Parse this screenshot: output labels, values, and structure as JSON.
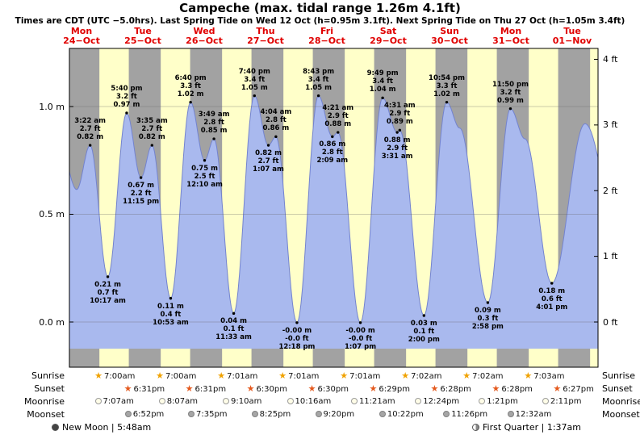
{
  "header": {
    "title": "Campeche (max. tidal range 1.26m 4.1ft)",
    "subtitle": "Times are CDT (UTC −5.0hrs). Last Spring Tide on Wed 12 Oct (h=0.95m 3.1ft). Next Spring Tide on Thu 27 Oct (h=1.05m 3.4ft)"
  },
  "chart_data": {
    "type": "area",
    "title": "Campeche tide curve",
    "colors": {
      "day_band": "#ffffc9",
      "night_band": "#a2a2a2",
      "tide_fill": "#a9b9ee",
      "tide_stroke": "#7383cf",
      "day_label": "#e00000",
      "grid": "#666666"
    },
    "ylim_m": [
      -0.21,
      1.27
    ],
    "y_ticks_left": [
      {
        "label": "1.0 m",
        "value": 1.0
      },
      {
        "label": "0.5 m",
        "value": 0.5
      },
      {
        "label": "0.0 m",
        "value": 0.0
      }
    ],
    "y_ticks_right": [
      {
        "label": "4 ft",
        "value": 4
      },
      {
        "label": "3 ft",
        "value": 3
      },
      {
        "label": "2 ft",
        "value": 2
      },
      {
        "label": "1 ft",
        "value": 1
      },
      {
        "label": "0 ft",
        "value": 0
      }
    ],
    "days": [
      {
        "dow": "Mon",
        "date": "24−Oct"
      },
      {
        "dow": "Tue",
        "date": "25−Oct"
      },
      {
        "dow": "Wed",
        "date": "26−Oct"
      },
      {
        "dow": "Thu",
        "date": "27−Oct"
      },
      {
        "dow": "Fri",
        "date": "28−Oct"
      },
      {
        "dow": "Sat",
        "date": "29−Oct"
      },
      {
        "dow": "Sun",
        "date": "30−Oct"
      },
      {
        "dow": "Mon",
        "date": "31−Oct"
      },
      {
        "dow": "Tue",
        "date": "01−Nov"
      }
    ],
    "tide_events": [
      {
        "t": 3.37,
        "h": 0.82,
        "type": "high",
        "time": "3:22 am",
        "ft": "2.7 ft",
        "m": "0.82 m"
      },
      {
        "t": 10.28,
        "h": 0.21,
        "type": "low",
        "time": "10:17 am",
        "ft": "0.7 ft",
        "m": "0.21 m"
      },
      {
        "t": 17.67,
        "h": 0.97,
        "type": "high",
        "time": "5:40 pm",
        "ft": "3.2 ft",
        "m": "0.97 m"
      },
      {
        "t": 23.25,
        "h": 0.67,
        "type": "low",
        "time": "11:15 pm",
        "ft": "2.2 ft",
        "m": "0.67 m"
      },
      {
        "t": 27.58,
        "h": 0.82,
        "type": "high",
        "time": "3:35 am",
        "ft": "2.7 ft",
        "m": "0.82 m"
      },
      {
        "t": 34.88,
        "h": 0.11,
        "type": "low",
        "time": "10:53 am",
        "ft": "0.4 ft",
        "m": "0.11 m"
      },
      {
        "t": 42.67,
        "h": 1.02,
        "type": "high",
        "time": "6:40 pm",
        "ft": "3.3 ft",
        "m": "1.02 m"
      },
      {
        "t": 48.17,
        "h": 0.75,
        "type": "low",
        "time": "12:10 am",
        "ft": "2.5 ft",
        "m": "0.75 m"
      },
      {
        "t": 51.82,
        "h": 0.85,
        "type": "high",
        "time": "3:49 am",
        "ft": "2.8 ft",
        "m": "0.85 m"
      },
      {
        "t": 59.55,
        "h": 0.04,
        "type": "low",
        "time": "11:33 am",
        "ft": "0.1 ft",
        "m": "0.04 m"
      },
      {
        "t": 67.67,
        "h": 1.05,
        "type": "high",
        "time": "7:40 pm",
        "ft": "3.4 ft",
        "m": "1.05 m"
      },
      {
        "t": 73.12,
        "h": 0.82,
        "type": "low",
        "time": "1:07 am",
        "ft": "2.7 ft",
        "m": "0.82 m"
      },
      {
        "t": 76.07,
        "h": 0.86,
        "type": "high",
        "time": "4:04 am",
        "ft": "2.8 ft",
        "m": "0.86 m"
      },
      {
        "t": 84.3,
        "h": -0.003,
        "type": "low",
        "time": "12:18 pm",
        "ft": "-0.0 ft",
        "m": "-0.00 m"
      },
      {
        "t": 92.72,
        "h": 1.05,
        "type": "high",
        "time": "8:43 pm",
        "ft": "3.4 ft",
        "m": "1.05 m"
      },
      {
        "t": 98.15,
        "h": 0.86,
        "type": "low",
        "time": "2:09 am",
        "ft": "2.8 ft",
        "m": "0.86 m"
      },
      {
        "t": 100.35,
        "h": 0.88,
        "type": "high",
        "time": "4:21 am",
        "ft": "2.9 ft",
        "m": "0.88 m"
      },
      {
        "t": 109.12,
        "h": -0.003,
        "type": "low",
        "time": "1:07 pm",
        "ft": "-0.0 ft",
        "m": "-0.00 m"
      },
      {
        "t": 117.82,
        "h": 1.04,
        "type": "high",
        "time": "9:49 pm",
        "ft": "3.4 ft",
        "m": "1.04 m"
      },
      {
        "t": 123.52,
        "h": 0.88,
        "type": "low",
        "time": "3:31 am",
        "ft": "2.9 ft",
        "m": "0.88 m"
      },
      {
        "t": 124.52,
        "h": 0.89,
        "type": "high",
        "time": "4:31 am",
        "ft": "2.9 ft",
        "m": "0.89 m"
      },
      {
        "t": 134.0,
        "h": 0.03,
        "type": "low",
        "time": "2:00 pm",
        "ft": "0.1 ft",
        "m": "0.03 m"
      },
      {
        "t": 142.9,
        "h": 1.02,
        "type": "high",
        "time": "10:54 pm",
        "ft": "3.3 ft",
        "m": "1.02 m"
      },
      {
        "t": 158.97,
        "h": 0.09,
        "type": "low",
        "time": "2:58 pm",
        "ft": "0.3 ft",
        "m": "0.09 m"
      },
      {
        "t": 167.83,
        "h": 0.99,
        "type": "high",
        "time": "11:50 pm",
        "ft": "3.2 ft",
        "m": "0.99 m"
      },
      {
        "t": 184.02,
        "h": 0.18,
        "type": "low",
        "time": "4:01 pm",
        "ft": "0.6 ft",
        "m": "0.18 m"
      }
    ],
    "shape_anchors": [
      {
        "t": -8.0,
        "h": 0.8
      },
      {
        "t": -1.9,
        "h": 0.615
      },
      {
        "t": 148.0,
        "h": 0.9
      },
      {
        "t": 173.5,
        "h": 0.85
      },
      {
        "t": 197.0,
        "h": 0.92
      },
      {
        "t": 212.0,
        "h": 0.3
      }
    ]
  },
  "astro": {
    "rows": [
      {
        "label": "Sunrise",
        "icon": "sunrise",
        "entries": [
          {
            "time": "7:00am",
            "t": 7.0
          },
          {
            "time": "7:00am",
            "t": 31.0
          },
          {
            "time": "7:01am",
            "t": 55.02
          },
          {
            "time": "7:01am",
            "t": 79.02
          },
          {
            "time": "7:01am",
            "t": 103.02
          },
          {
            "time": "7:02am",
            "t": 127.03
          },
          {
            "time": "7:02am",
            "t": 151.03
          },
          {
            "time": "7:03am",
            "t": 175.05
          }
        ]
      },
      {
        "label": "Sunset",
        "icon": "sunset",
        "entries": [
          {
            "time": "6:31pm",
            "t": 18.52
          },
          {
            "time": "6:31pm",
            "t": 42.52
          },
          {
            "time": "6:30pm",
            "t": 66.5
          },
          {
            "time": "6:30pm",
            "t": 90.5
          },
          {
            "time": "6:29pm",
            "t": 114.48
          },
          {
            "time": "6:28pm",
            "t": 138.47
          },
          {
            "time": "6:28pm",
            "t": 162.47
          },
          {
            "time": "6:27pm",
            "t": 186.45
          }
        ]
      },
      {
        "label": "Moonrise",
        "icon": "moonrise",
        "entries": [
          {
            "time": "7:07am",
            "t": 7.12
          },
          {
            "time": "8:07am",
            "t": 32.12
          },
          {
            "time": "9:10am",
            "t": 57.17
          },
          {
            "time": "10:16am",
            "t": 82.27
          },
          {
            "time": "11:21am",
            "t": 107.35
          },
          {
            "time": "12:24pm",
            "t": 132.4
          },
          {
            "time": "1:21pm",
            "t": 157.35
          },
          {
            "time": "2:11pm",
            "t": 182.18
          }
        ]
      },
      {
        "label": "Moonset",
        "icon": "moonset",
        "entries": [
          {
            "time": "6:52pm",
            "t": 18.87
          },
          {
            "time": "7:35pm",
            "t": 43.58
          },
          {
            "time": "8:25pm",
            "t": 68.42
          },
          {
            "time": "9:20pm",
            "t": 93.33
          },
          {
            "time": "10:22pm",
            "t": 118.37
          },
          {
            "time": "11:26pm",
            "t": 143.43
          },
          {
            "time": "12:32am",
            "t": 168.53
          }
        ]
      }
    ],
    "footer_left": "New Moon | 5:48am",
    "footer_right": "First Quarter | 1:37am"
  }
}
